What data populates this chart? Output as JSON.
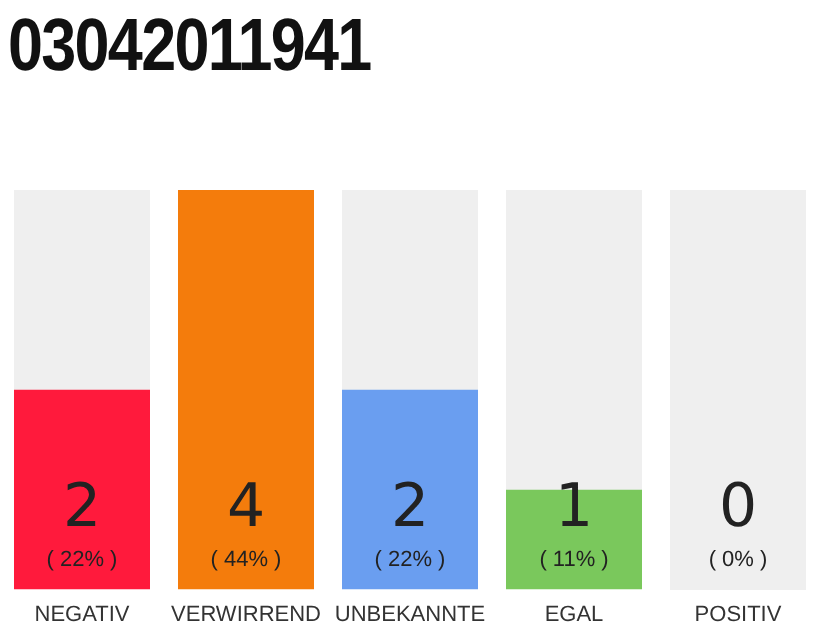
{
  "chart_data": {
    "type": "bar",
    "title": "03042011941",
    "categories": [
      "NEGATIV",
      "VERWIRREND",
      "UNBEKANNTE",
      "EGAL",
      "POSITIV"
    ],
    "values": [
      2,
      4,
      2,
      1,
      0
    ],
    "value_labels": [
      "2\n( 22% )",
      "4\n( 44% )",
      "2\n( 22% )",
      "1\n( 11% )",
      "0\n( 0% )"
    ],
    "colors": [
      "#ff1a3c",
      "#f47c0c",
      "#6a9ef0",
      "#7ac85c",
      "#dcdcdc"
    ],
    "ylim": [
      0,
      4
    ],
    "tick_labels": "x",
    "grid": false,
    "legend": false
  }
}
